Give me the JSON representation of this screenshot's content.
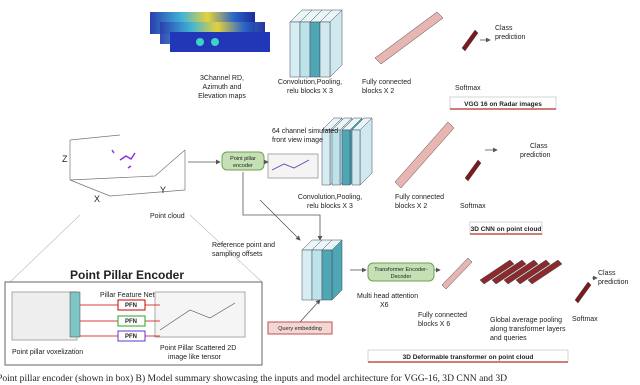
{
  "vgg": {
    "input_label": [
      "3Channel RD,",
      "Azimuth and",
      "Elevation maps"
    ],
    "conv_label": [
      "Convolution,Pooling,",
      "relu blocks X 3"
    ],
    "fc_label": [
      "Fully connected",
      "blocks X 2"
    ],
    "softmax_label": "Softmax",
    "output": [
      "Class",
      "prediction"
    ],
    "title": "VGG 16 on Radar images"
  },
  "cnn3d": {
    "input_label": [
      "64 channel simulated",
      "front view image"
    ],
    "encoder": [
      "Point pillar",
      "encoder"
    ],
    "point_cloud": "Point cloud",
    "axes": [
      "Z",
      "X",
      "Y"
    ],
    "conv_label": [
      "Convolution,Pooling,",
      "relu blocks X 3"
    ],
    "fc_label": [
      "Fully connected",
      "blocks X 2"
    ],
    "softmax_label": "Softmax",
    "output": [
      "Class",
      "prediction"
    ],
    "title": "3D CNN on point cloud"
  },
  "transformer": {
    "reference": [
      "Reference point and",
      "sampling offsets"
    ],
    "block": [
      "Transformer Encoder-",
      "Decoder"
    ],
    "attention": [
      "Multi head attention",
      "X6"
    ],
    "fc_label": [
      "Fully connected",
      "blocks X 6"
    ],
    "pooling": [
      "Global average pooling",
      "along transformer layers",
      "and queries"
    ],
    "softmax_label": "Softmax",
    "output": [
      "Class",
      "prediction"
    ],
    "query": "Query embedding",
    "title": "3D Deformable transformer on point cloud"
  },
  "pillar_encoder": {
    "title": "Point Pillar Encoder",
    "feature_net": "Pillar Feature Net",
    "pfn": [
      "PFN",
      "PFN",
      "PFN"
    ],
    "voxelization": "Point pillar voxelization",
    "scattered": [
      "Point Pillar Scattered 2D",
      "image like tensor"
    ]
  },
  "caption": "Point pillar encoder (shown in box) B) Model summary showcasing the inputs and model architecture for VGG-16, 3D CNN and 3D"
}
